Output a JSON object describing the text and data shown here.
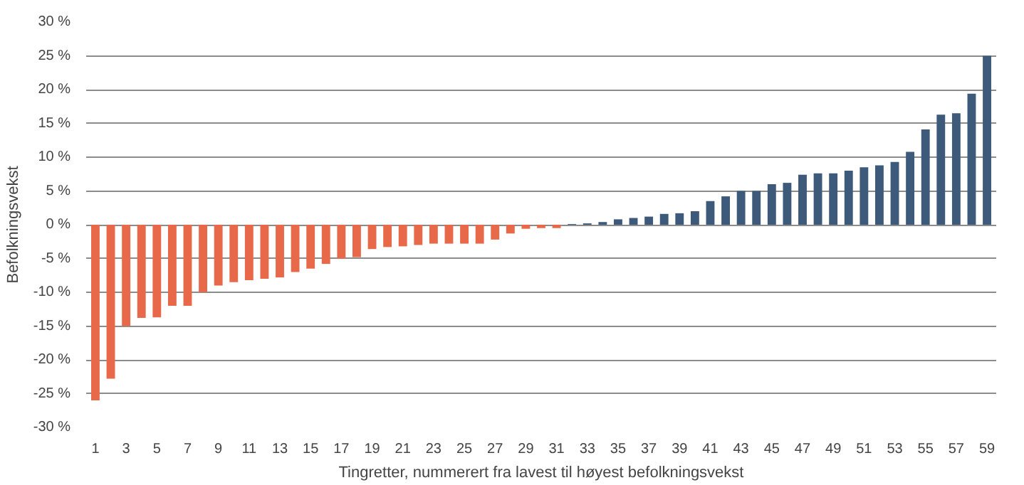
{
  "chart_data": {
    "type": "bar",
    "xlabel": "Tingretter, nummerert fra lavest til høyest befolkningsvekst",
    "ylabel": "Befolkningsvekst",
    "x": [
      1,
      2,
      3,
      4,
      5,
      6,
      7,
      8,
      9,
      10,
      11,
      12,
      13,
      14,
      15,
      16,
      17,
      18,
      19,
      20,
      21,
      22,
      23,
      24,
      25,
      26,
      27,
      28,
      29,
      30,
      31,
      32,
      33,
      34,
      35,
      36,
      37,
      38,
      39,
      40,
      41,
      42,
      43,
      44,
      45,
      46,
      47,
      48,
      49,
      50,
      51,
      52,
      53,
      54,
      55,
      56,
      57,
      58,
      59
    ],
    "values": [
      -26,
      -22.8,
      -15,
      -13.8,
      -13.7,
      -12,
      -12,
      -10,
      -9,
      -8.5,
      -8.2,
      -8,
      -7.8,
      -7,
      -6.5,
      -5.8,
      -5,
      -4.8,
      -3.6,
      -3.3,
      -3.2,
      -3,
      -2.8,
      -2.8,
      -2.8,
      -2.8,
      -2.2,
      -1.3,
      -0.6,
      -0.5,
      -0.5,
      0.1,
      0.2,
      0.4,
      0.8,
      1.0,
      1.2,
      1.6,
      1.7,
      2.0,
      3.5,
      4.2,
      5.0,
      5.0,
      6.0,
      6.2,
      7.4,
      7.6,
      7.6,
      8.0,
      8.5,
      8.8,
      9.3,
      10.8,
      14.1,
      16.3,
      16.5,
      19.4,
      25
    ],
    "colors": [
      "#e8694a",
      "#e8694a",
      "#e8694a",
      "#e8694a",
      "#e8694a",
      "#e8694a",
      "#e8694a",
      "#e8694a",
      "#e8694a",
      "#e8694a",
      "#e8694a",
      "#e8694a",
      "#e8694a",
      "#e8694a",
      "#e8694a",
      "#e8694a",
      "#e8694a",
      "#e8694a",
      "#e8694a",
      "#e8694a",
      "#e8694a",
      "#e8694a",
      "#e8694a",
      "#e8694a",
      "#e8694a",
      "#e8694a",
      "#e8694a",
      "#e8694a",
      "#e8694a",
      "#e8694a",
      "#e8694a",
      "#3d5a7a",
      "#3d5a7a",
      "#3d5a7a",
      "#3d5a7a",
      "#3d5a7a",
      "#3d5a7a",
      "#3d5a7a",
      "#3d5a7a",
      "#3d5a7a",
      "#3d5a7a",
      "#3d5a7a",
      "#3d5a7a",
      "#3d5a7a",
      "#3d5a7a",
      "#3d5a7a",
      "#3d5a7a",
      "#3d5a7a",
      "#3d5a7a",
      "#3d5a7a",
      "#3d5a7a",
      "#3d5a7a",
      "#3d5a7a",
      "#3d5a7a",
      "#3d5a7a",
      "#3d5a7a",
      "#3d5a7a",
      "#3d5a7a",
      "#3d5a7a"
    ],
    "xlim": [
      0.4,
      59.6
    ],
    "xticks": [
      1,
      3,
      5,
      7,
      9,
      11,
      13,
      15,
      17,
      19,
      21,
      23,
      25,
      27,
      29,
      31,
      33,
      35,
      37,
      39,
      41,
      43,
      45,
      47,
      49,
      51,
      53,
      55,
      57,
      59
    ],
    "ylim": [
      -30,
      30
    ],
    "yticks": [
      {
        "value": -30,
        "label": "-30 %"
      },
      {
        "value": -25,
        "label": "-25 %"
      },
      {
        "value": -20,
        "label": "-20 %"
      },
      {
        "value": -15,
        "label": "-15 %"
      },
      {
        "value": -10,
        "label": "-10 %"
      },
      {
        "value": -5,
        "label": "-5 %"
      },
      {
        "value": 0,
        "label": "0 %"
      },
      {
        "value": 5,
        "label": "5 %"
      },
      {
        "value": 10,
        "label": "10 %"
      },
      {
        "value": 15,
        "label": "15 %"
      },
      {
        "value": 20,
        "label": "20 %"
      },
      {
        "value": 25,
        "label": "25 %"
      },
      {
        "value": 30,
        "label": "30 %"
      }
    ],
    "grid": "y"
  }
}
